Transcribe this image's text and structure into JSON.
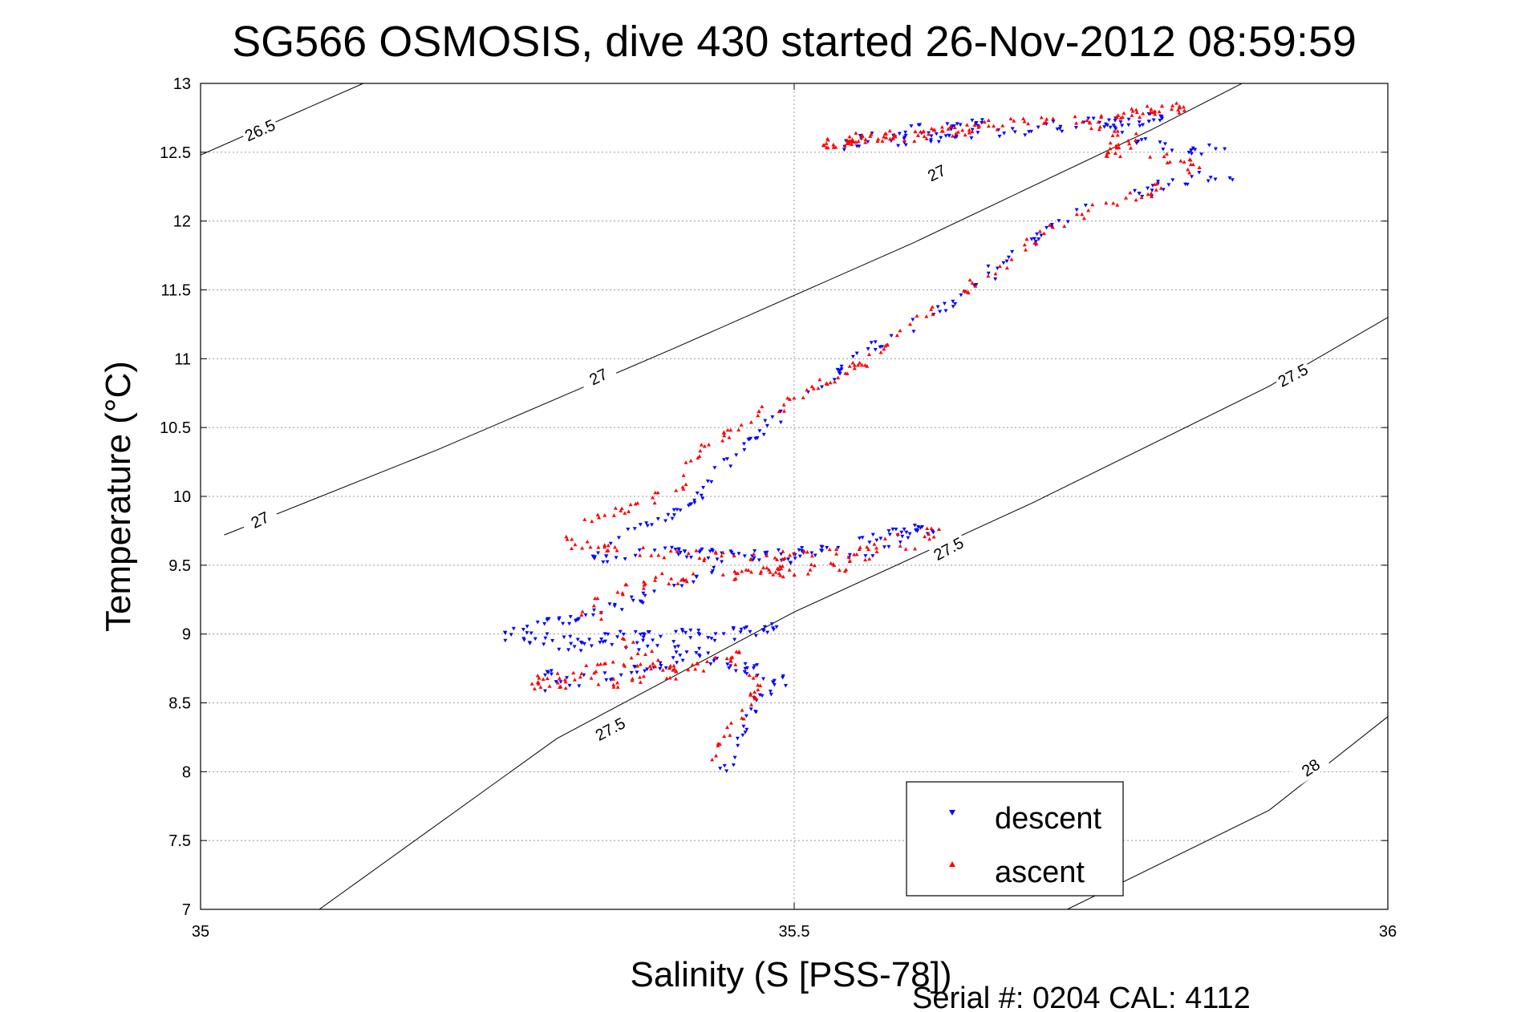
{
  "chart_data": {
    "type": "scatter",
    "title": "SG566 OSMOSIS, dive 430 started 26-Nov-2012 08:59:59",
    "xlabel": "Salinity (S [PSS-78])",
    "ylabel": "Temperature (°C)",
    "xlim": [
      35,
      36
    ],
    "ylim": [
      7,
      13
    ],
    "x_ticks": [
      35,
      35.5,
      36
    ],
    "x_tick_labels": [
      "35",
      "35.5",
      "36"
    ],
    "y_ticks": [
      7,
      7.5,
      8,
      8.5,
      9,
      9.5,
      10,
      10.5,
      11,
      11.5,
      12,
      12.5,
      13
    ],
    "y_tick_labels": [
      "7",
      "7.5",
      "8",
      "8.5",
      "9",
      "9.5",
      "10",
      "10.5",
      "11",
      "11.5",
      "12",
      "12.5",
      "13"
    ],
    "grid": true,
    "legend_position": "bottom-right",
    "footer": "Serial #: 0204  CAL: 4112",
    "contours": [
      {
        "level": "26.5",
        "points": [
          [
            35,
            12.48
          ],
          [
            35.137,
            13
          ]
        ],
        "labels": [
          {
            "text": "26.5",
            "s": 35.05,
            "t": 12.66,
            "angle": -24
          }
        ]
      },
      {
        "level": "27",
        "points": [
          [
            35.02,
            9.72
          ],
          [
            35.2,
            10.34
          ],
          [
            35.4,
            11.08
          ],
          [
            35.6,
            11.84
          ],
          [
            35.8,
            12.66
          ],
          [
            35.9,
            13.1
          ]
        ],
        "labels": [
          {
            "text": "27",
            "s": 35.05,
            "t": 9.83,
            "angle": -26
          },
          {
            "text": "27",
            "s": 35.335,
            "t": 10.87,
            "angle": -26
          },
          {
            "text": "27",
            "s": 35.62,
            "t": 12.35,
            "angle": -26
          }
        ]
      },
      {
        "level": "27.5",
        "points": [
          [
            35.1,
            7
          ],
          [
            35.3,
            8.24
          ],
          [
            35.5,
            9.16
          ],
          [
            35.7,
            9.95
          ],
          [
            35.9,
            10.8
          ],
          [
            36,
            11.3
          ]
        ],
        "labels": [
          {
            "text": "27.5",
            "s": 35.345,
            "t": 8.31,
            "angle": -28
          },
          {
            "text": "27.5",
            "s": 35.63,
            "t": 9.62,
            "angle": -28
          },
          {
            "text": "27.5",
            "s": 35.92,
            "t": 10.88,
            "angle": -28
          }
        ]
      },
      {
        "level": "28",
        "points": [
          [
            35.73,
            7
          ],
          [
            35.9,
            7.72
          ],
          [
            36,
            8.4
          ]
        ],
        "labels": [
          {
            "text": "28",
            "s": 35.935,
            "t": 8.03,
            "angle": -34
          }
        ]
      }
    ],
    "series": [
      {
        "name": "descent",
        "color": "#0000ff",
        "marker": "triangle-down",
        "path": [
          [
            35.44,
            8.0
          ],
          [
            35.45,
            8.15
          ],
          [
            35.46,
            8.35
          ],
          [
            35.47,
            8.55
          ],
          [
            35.49,
            8.65
          ],
          [
            35.47,
            8.72
          ],
          [
            35.44,
            8.8
          ],
          [
            35.42,
            8.88
          ],
          [
            35.38,
            8.75
          ],
          [
            35.34,
            8.7
          ],
          [
            35.29,
            8.62
          ],
          [
            35.3,
            8.9
          ],
          [
            35.38,
            8.92
          ],
          [
            35.45,
            9.0
          ],
          [
            35.49,
            9.05
          ],
          [
            35.3,
            8.95
          ],
          [
            35.25,
            9.0
          ],
          [
            35.33,
            9.15
          ],
          [
            35.4,
            9.35
          ],
          [
            35.45,
            9.55
          ],
          [
            35.52,
            9.6
          ],
          [
            35.58,
            9.72
          ],
          [
            35.62,
            9.78
          ],
          [
            35.57,
            9.6
          ],
          [
            35.5,
            9.55
          ],
          [
            35.4,
            9.6
          ],
          [
            35.33,
            9.55
          ],
          [
            35.35,
            9.7
          ],
          [
            35.39,
            9.85
          ],
          [
            35.42,
            9.95
          ],
          [
            35.43,
            10.15
          ],
          [
            35.46,
            10.4
          ],
          [
            35.5,
            10.65
          ],
          [
            35.53,
            10.85
          ],
          [
            35.56,
            11.05
          ],
          [
            35.6,
            11.25
          ],
          [
            35.64,
            11.45
          ],
          [
            35.67,
            11.65
          ],
          [
            35.7,
            11.85
          ],
          [
            35.72,
            12.0
          ],
          [
            35.75,
            12.1
          ],
          [
            35.79,
            12.2
          ],
          [
            35.83,
            12.3
          ],
          [
            35.88,
            12.35
          ],
          [
            35.86,
            12.5
          ],
          [
            35.82,
            12.55
          ],
          [
            35.78,
            12.6
          ],
          [
            35.76,
            12.7
          ],
          [
            35.81,
            12.75
          ],
          [
            35.54,
            12.55
          ],
          [
            35.57,
            12.62
          ],
          [
            35.61,
            12.68
          ],
          [
            35.66,
            12.7
          ]
        ],
        "count": 560,
        "seed": 11
      },
      {
        "name": "ascent",
        "color": "#ff0000",
        "marker": "triangle-up",
        "path": [
          [
            35.43,
            8.0
          ],
          [
            35.44,
            8.2
          ],
          [
            35.46,
            8.45
          ],
          [
            35.47,
            8.6
          ],
          [
            35.46,
            8.75
          ],
          [
            35.44,
            8.83
          ],
          [
            35.46,
            8.86
          ],
          [
            35.41,
            8.75
          ],
          [
            35.36,
            8.8
          ],
          [
            35.31,
            8.7
          ],
          [
            35.28,
            8.64
          ],
          [
            35.35,
            8.65
          ],
          [
            35.4,
            8.7
          ],
          [
            35.32,
            9.2
          ],
          [
            35.39,
            9.4
          ],
          [
            35.48,
            9.45
          ],
          [
            35.55,
            9.5
          ],
          [
            35.6,
            9.65
          ],
          [
            35.62,
            9.75
          ],
          [
            35.55,
            9.6
          ],
          [
            35.46,
            9.55
          ],
          [
            35.37,
            9.6
          ],
          [
            35.31,
            9.65
          ],
          [
            35.32,
            9.8
          ],
          [
            35.36,
            9.9
          ],
          [
            35.4,
            10.05
          ],
          [
            35.42,
            10.3
          ],
          [
            35.45,
            10.52
          ],
          [
            35.5,
            10.7
          ],
          [
            35.54,
            10.88
          ],
          [
            35.57,
            11.05
          ],
          [
            35.6,
            11.3
          ],
          [
            35.63,
            11.45
          ],
          [
            35.67,
            11.62
          ],
          [
            35.7,
            11.85
          ],
          [
            35.73,
            12.0
          ],
          [
            35.76,
            12.12
          ],
          [
            35.81,
            12.25
          ],
          [
            35.84,
            12.4
          ],
          [
            35.8,
            12.5
          ],
          [
            35.76,
            12.5
          ],
          [
            35.79,
            12.6
          ],
          [
            35.75,
            12.72
          ],
          [
            35.78,
            12.8
          ],
          [
            35.83,
            12.82
          ],
          [
            35.52,
            12.55
          ],
          [
            35.57,
            12.62
          ],
          [
            35.64,
            12.65
          ],
          [
            35.68,
            12.72
          ],
          [
            35.72,
            12.78
          ]
        ],
        "count": 560,
        "seed": 29
      }
    ],
    "legend": [
      {
        "label": "descent",
        "color": "#0000ff",
        "marker": "triangle-down"
      },
      {
        "label": "ascent",
        "color": "#ff0000",
        "marker": "triangle-up"
      }
    ]
  }
}
